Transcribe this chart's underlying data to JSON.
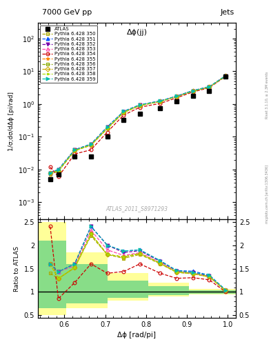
{
  "title_top": "7000 GeV pp",
  "title_right": "Jets",
  "annotation": "Δϕ(jj)",
  "watermark": "ATLAS_2011_S8971293",
  "right_label": "mcplots.cern.ch [arXiv:1306.3436]",
  "right_label2": "Rivet 3.1.10, ≥ 2.3M events",
  "ylabel_main": "1/σ;dσ/dΔϕ [pi/rad]",
  "ylabel_ratio": "Ratio to ATLAS",
  "xlabel": "Δϕ [rad/pi]",
  "xlim": [
    0.535,
    1.02
  ],
  "ylim_main": [
    0.0003,
    300
  ],
  "ylim_ratio": [
    0.45,
    2.55
  ],
  "x_data": [
    0.565,
    0.585,
    0.625,
    0.665,
    0.705,
    0.745,
    0.785,
    0.835,
    0.875,
    0.915,
    0.955,
    0.995
  ],
  "atlas_y": [
    0.005,
    0.007,
    0.025,
    0.025,
    0.1,
    0.32,
    0.5,
    0.75,
    1.2,
    1.8,
    2.5,
    7.0
  ],
  "pythia_series": [
    {
      "label": "Pythia 6.428 350",
      "color": "#aaaa00",
      "marker": "s",
      "fillstyle": "none",
      "linestyle": "--",
      "y": [
        0.007,
        0.009,
        0.038,
        0.055,
        0.18,
        0.55,
        0.9,
        1.2,
        1.7,
        2.5,
        3.3,
        7.2
      ]
    },
    {
      "label": "Pythia 6.428 351",
      "color": "#0055ff",
      "marker": "^",
      "fillstyle": "full",
      "linestyle": "--",
      "y": [
        0.008,
        0.01,
        0.04,
        0.06,
        0.2,
        0.6,
        0.95,
        1.25,
        1.75,
        2.6,
        3.4,
        7.3
      ]
    },
    {
      "label": "Pythia 6.428 352",
      "color": "#7700aa",
      "marker": "v",
      "fillstyle": "full",
      "linestyle": "--",
      "y": [
        0.008,
        0.01,
        0.04,
        0.06,
        0.2,
        0.59,
        0.94,
        1.24,
        1.74,
        2.55,
        3.35,
        7.25
      ]
    },
    {
      "label": "Pythia 6.428 353",
      "color": "#ff44aa",
      "marker": "^",
      "fillstyle": "none",
      "linestyle": "--",
      "y": [
        0.008,
        0.01,
        0.039,
        0.058,
        0.19,
        0.57,
        0.92,
        1.22,
        1.72,
        2.52,
        3.32,
        7.22
      ]
    },
    {
      "label": "Pythia 6.428 354",
      "color": "#cc0000",
      "marker": "o",
      "fillstyle": "none",
      "linestyle": "--",
      "y": [
        0.012,
        0.006,
        0.03,
        0.04,
        0.14,
        0.46,
        0.8,
        1.05,
        1.55,
        2.35,
        3.15,
        7.0
      ]
    },
    {
      "label": "Pythia 6.428 355",
      "color": "#ff8800",
      "marker": "*",
      "fillstyle": "full",
      "linestyle": "--",
      "y": [
        0.008,
        0.009,
        0.038,
        0.056,
        0.18,
        0.56,
        0.91,
        1.21,
        1.71,
        2.51,
        3.31,
        7.21
      ]
    },
    {
      "label": "Pythia 6.428 356",
      "color": "#88aa00",
      "marker": "s",
      "fillstyle": "none",
      "linestyle": "--",
      "y": [
        0.008,
        0.009,
        0.038,
        0.056,
        0.18,
        0.56,
        0.91,
        1.21,
        1.71,
        2.51,
        3.31,
        7.21
      ]
    },
    {
      "label": "Pythia 6.428 357",
      "color": "#ccaa00",
      "marker": "D",
      "fillstyle": "none",
      "linestyle": "--",
      "y": [
        0.008,
        0.009,
        0.038,
        0.056,
        0.18,
        0.56,
        0.91,
        1.21,
        1.71,
        2.51,
        3.31,
        7.21
      ]
    },
    {
      "label": "Pythia 6.428 358",
      "color": "#aadd00",
      "marker": ".",
      "fillstyle": "full",
      "linestyle": "--",
      "y": [
        0.008,
        0.009,
        0.038,
        0.056,
        0.18,
        0.56,
        0.91,
        1.21,
        1.71,
        2.51,
        3.31,
        7.21
      ]
    },
    {
      "label": "Pythia 6.428 359",
      "color": "#00bbaa",
      "marker": ">",
      "fillstyle": "full",
      "linestyle": "--",
      "y": [
        0.008,
        0.01,
        0.04,
        0.06,
        0.2,
        0.6,
        0.95,
        1.25,
        1.75,
        2.55,
        3.4,
        7.3
      ]
    }
  ],
  "ratio_yellow_band_x": [
    0.535,
    0.605,
    0.605,
    0.705,
    0.705,
    0.805,
    0.805,
    0.905,
    0.905,
    1.02
  ],
  "ratio_yellow_y_low": [
    0.5,
    0.5,
    0.65,
    0.65,
    0.82,
    0.82,
    0.9,
    0.9,
    0.95,
    0.95
  ],
  "ratio_yellow_y_high": [
    2.5,
    2.5,
    1.85,
    1.85,
    1.4,
    1.4,
    1.2,
    1.2,
    1.06,
    1.06
  ],
  "ratio_green_x": [
    0.535,
    0.605,
    0.605,
    0.705,
    0.705,
    0.805,
    0.805,
    0.905,
    0.905,
    1.02
  ],
  "ratio_green_y_low": [
    0.65,
    0.65,
    0.75,
    0.75,
    0.88,
    0.88,
    0.93,
    0.93,
    0.97,
    0.97
  ],
  "ratio_green_y_high": [
    2.1,
    2.1,
    1.6,
    1.6,
    1.25,
    1.25,
    1.12,
    1.12,
    1.03,
    1.03
  ]
}
